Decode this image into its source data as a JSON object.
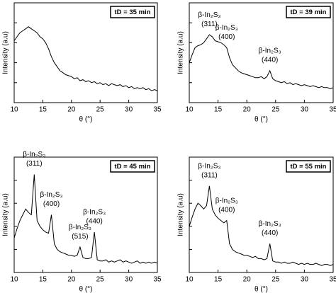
{
  "chart_data": [
    {
      "type": "line",
      "box_label": "tD = 35 min",
      "x_label": "θ (°)",
      "y_label": "Intensity (a.u)",
      "xlim": [
        10,
        35
      ],
      "xticks": [
        10,
        15,
        20,
        25,
        30,
        35
      ],
      "ylim": [
        0,
        100
      ],
      "color": "#000000",
      "x": [
        10,
        10.5,
        11,
        11.5,
        12,
        12.5,
        13,
        13.5,
        14,
        14.5,
        15,
        15.5,
        16,
        16.5,
        17,
        17.5,
        18,
        18.5,
        19,
        19.5,
        20,
        20.5,
        21,
        21.5,
        22,
        22.5,
        23,
        23.5,
        24,
        24.5,
        25,
        25.5,
        26,
        26.5,
        27,
        27.5,
        28,
        28.5,
        29,
        29.5,
        30,
        30.5,
        31,
        31.5,
        32,
        32.5,
        33,
        33.5,
        34,
        34.5,
        35
      ],
      "values": [
        62,
        66,
        70,
        72,
        74,
        76,
        74,
        72,
        70,
        66,
        64,
        60,
        54,
        46,
        40,
        36,
        32,
        30,
        28,
        27,
        26,
        24,
        25,
        22,
        23,
        21,
        22,
        20,
        21,
        19,
        20,
        18,
        19,
        17,
        19,
        18,
        17,
        18,
        16,
        17,
        15,
        16,
        14,
        15,
        14,
        15,
        13,
        14,
        12,
        13,
        12
      ],
      "annotations": []
    },
    {
      "type": "line",
      "box_label": "tD = 39 min",
      "x_label": "θ (°)",
      "y_label": "Intensity (a.u)",
      "xlim": [
        10,
        35
      ],
      "xticks": [
        10,
        15,
        20,
        25,
        30,
        35
      ],
      "ylim": [
        0,
        100
      ],
      "color": "#000000",
      "x": [
        10,
        10.5,
        11,
        11.5,
        12,
        12.5,
        13,
        13.5,
        14,
        14.5,
        15,
        15.5,
        16,
        16.5,
        17,
        17.5,
        18,
        18.5,
        19,
        19.5,
        20,
        20.5,
        21,
        21.5,
        22,
        22.5,
        23,
        23.5,
        24,
        24.5,
        25,
        25.5,
        26,
        26.5,
        27,
        27.5,
        28,
        28.5,
        29,
        29.5,
        30,
        30.5,
        31,
        31.5,
        32,
        32.5,
        33,
        33.5,
        34,
        34.5,
        35
      ],
      "values": [
        40,
        48,
        55,
        57,
        58,
        60,
        64,
        68,
        66,
        62,
        61,
        60,
        58,
        55,
        45,
        38,
        35,
        32,
        30,
        29,
        28,
        27,
        26,
        25,
        25,
        26,
        24,
        26,
        32,
        24,
        22,
        21,
        20,
        21,
        19,
        20,
        18,
        19,
        18,
        17,
        18,
        17,
        16,
        17,
        16,
        15,
        16,
        15,
        15,
        14,
        15
      ],
      "annotations": [
        {
          "text": "β-In₂S₃",
          "label": "(311)",
          "x": 13.5
        },
        {
          "text": "β-In₂S₃",
          "label": "(400)",
          "x": 16.5
        },
        {
          "text": "β-In₂S₃",
          "label": "(440)",
          "x": 24
        }
      ]
    },
    {
      "type": "line",
      "box_label": "tD = 45 min",
      "x_label": "θ (°)",
      "y_label": "Intensity (a.u)",
      "xlim": [
        10,
        35
      ],
      "xticks": [
        10,
        15,
        20,
        25,
        30,
        35
      ],
      "ylim": [
        0,
        100
      ],
      "color": "#000000",
      "x": [
        10,
        10.5,
        11,
        11.5,
        12,
        12.5,
        13,
        13.5,
        14,
        14.5,
        15,
        15.5,
        16,
        16.5,
        17,
        17.5,
        18,
        18.5,
        19,
        19.5,
        20,
        20.5,
        21,
        21.5,
        22,
        22.5,
        23,
        23.5,
        24,
        24.5,
        25,
        25.5,
        26,
        26.5,
        27,
        27.5,
        28,
        28.5,
        29,
        29.5,
        30,
        30.5,
        31,
        31.5,
        32,
        32.5,
        33,
        33.5,
        34,
        34.5,
        35
      ],
      "values": [
        30,
        38,
        45,
        50,
        55,
        52,
        50,
        85,
        45,
        40,
        37,
        35,
        34,
        50,
        25,
        20,
        18,
        17,
        16,
        15,
        15,
        14,
        15,
        22,
        13,
        12,
        12,
        13,
        35,
        11,
        10,
        10,
        11,
        9,
        10,
        9,
        10,
        11,
        9,
        10,
        9,
        8,
        9,
        10,
        8,
        9,
        8,
        9,
        8,
        9,
        8
      ],
      "annotations": [
        {
          "text": "β-In₂S₃",
          "label": "(311)",
          "x": 13.5
        },
        {
          "text": "β-In₂S₃",
          "label": "(400)",
          "x": 16.5
        },
        {
          "text": "β-In₂S₃",
          "label": "(515)",
          "x": 21.5
        },
        {
          "text": "β-In₂S₃",
          "label": "(440)",
          "x": 24
        }
      ]
    },
    {
      "type": "line",
      "box_label": "tD = 55 min",
      "x_label": "θ (°)",
      "y_label": "Intensity (a.u)",
      "xlim": [
        10,
        35
      ],
      "xticks": [
        10,
        15,
        20,
        25,
        30,
        35
      ],
      "ylim": [
        0,
        100
      ],
      "color": "#000000",
      "x": [
        10,
        10.5,
        11,
        11.5,
        12,
        12.5,
        13,
        13.5,
        14,
        14.5,
        15,
        15.5,
        16,
        16.5,
        17,
        17.5,
        18,
        18.5,
        19,
        19.5,
        20,
        20.5,
        21,
        21.5,
        22,
        22.5,
        23,
        23.5,
        24,
        24.5,
        25,
        25.5,
        26,
        26.5,
        27,
        27.5,
        28,
        28.5,
        29,
        29.5,
        30,
        30.5,
        31,
        31.5,
        32,
        32.5,
        33,
        33.5,
        34,
        34.5,
        35
      ],
      "values": [
        40,
        48,
        55,
        60,
        58,
        55,
        58,
        75,
        55,
        50,
        47,
        45,
        43,
        45,
        25,
        20,
        18,
        17,
        16,
        15,
        15,
        14,
        13,
        14,
        12,
        12,
        11,
        12,
        25,
        10,
        9,
        9,
        8,
        9,
        8,
        8,
        9,
        8,
        7,
        8,
        7,
        8,
        7,
        7,
        8,
        7,
        6,
        7,
        7,
        6,
        7
      ],
      "annotations": [
        {
          "text": "β-In₂S₃",
          "label": "(311)",
          "x": 13.5
        },
        {
          "text": "β-In₂S₃",
          "label": "(400)",
          "x": 16.5
        },
        {
          "text": "β-In₂S₃",
          "label": "(440)",
          "x": 24
        }
      ]
    }
  ]
}
